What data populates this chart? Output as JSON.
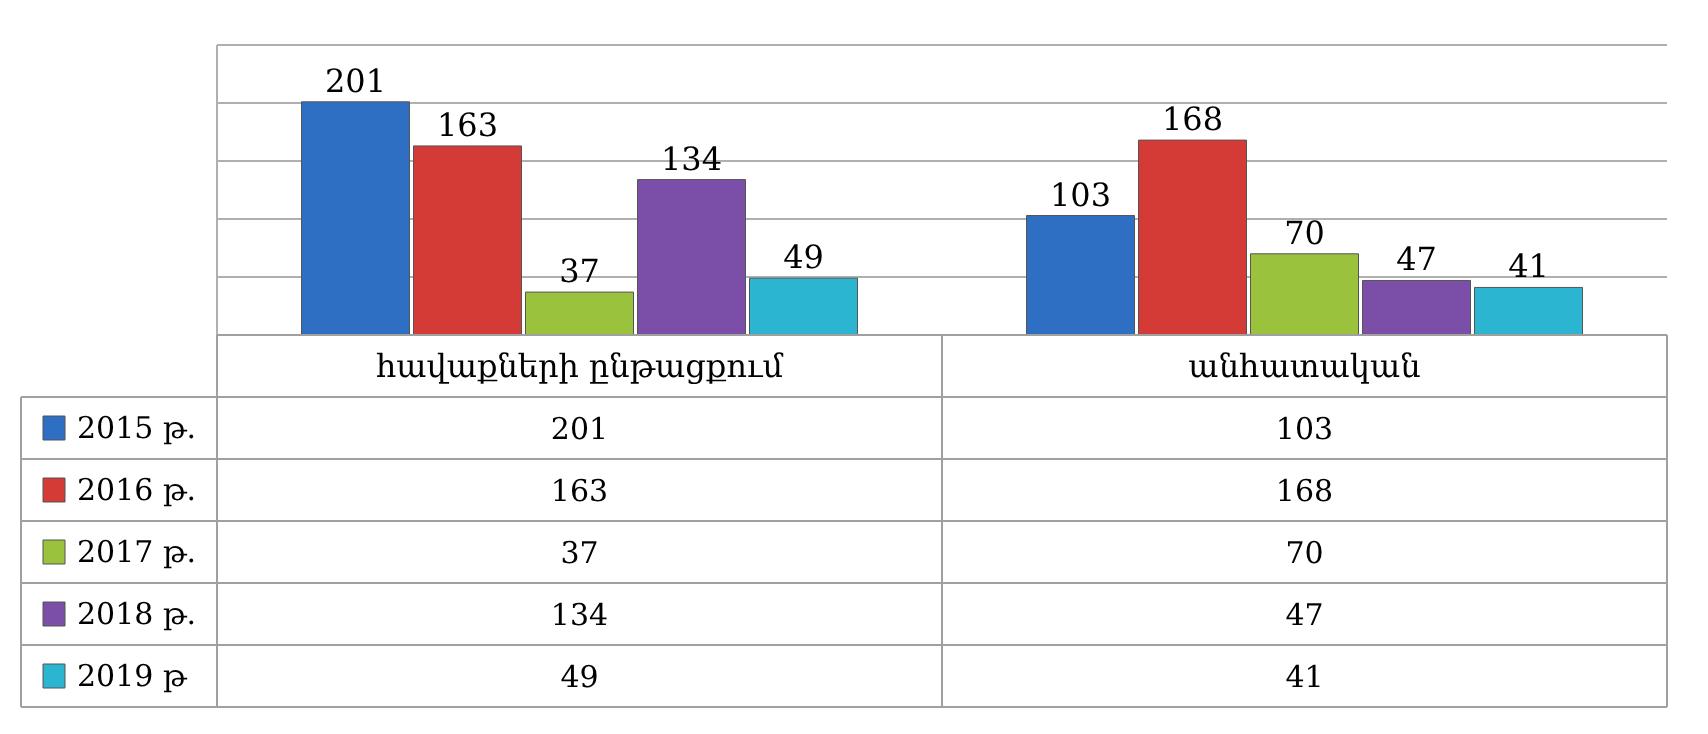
{
  "chart_data": {
    "type": "bar",
    "categories": [
      "հավաքների ընթացքում",
      "անհատական"
    ],
    "series": [
      {
        "name": "2015 թ.",
        "color": "#2e6fc4",
        "values": [
          201,
          103
        ],
        "value_labels": [
          "201",
          "103"
        ]
      },
      {
        "name": "2016 թ.",
        "color": "#d43b36",
        "values": [
          163,
          168
        ],
        "value_labels": [
          "163",
          "168"
        ]
      },
      {
        "name": "2017 թ.",
        "color": "#9bc23c",
        "values": [
          37,
          70
        ],
        "value_labels": [
          "37",
          "70"
        ]
      },
      {
        "name": "2018 թ.",
        "color": "#7b4fa8",
        "values": [
          134,
          47
        ],
        "value_labels": [
          "134",
          "47"
        ]
      },
      {
        "name": "2019 թ",
        "color": "#2bb5d0",
        "values": [
          49,
          41
        ],
        "value_labels": [
          "49",
          "41"
        ]
      }
    ],
    "ylim": [
      0,
      250
    ],
    "yticks": [
      {
        "value": 0,
        "label": null
      },
      {
        "value": 50,
        "label": null
      },
      {
        "value": 100,
        "label": null
      },
      {
        "value": 150,
        "label": null
      },
      {
        "value": 200,
        "label": null
      },
      {
        "value": 250,
        "label": null
      }
    ],
    "grid": "y",
    "legend": "bottom",
    "annotations": [
      "201",
      "103",
      "163",
      "168",
      "37",
      "70",
      "134",
      "47",
      "49",
      "41"
    ]
  }
}
